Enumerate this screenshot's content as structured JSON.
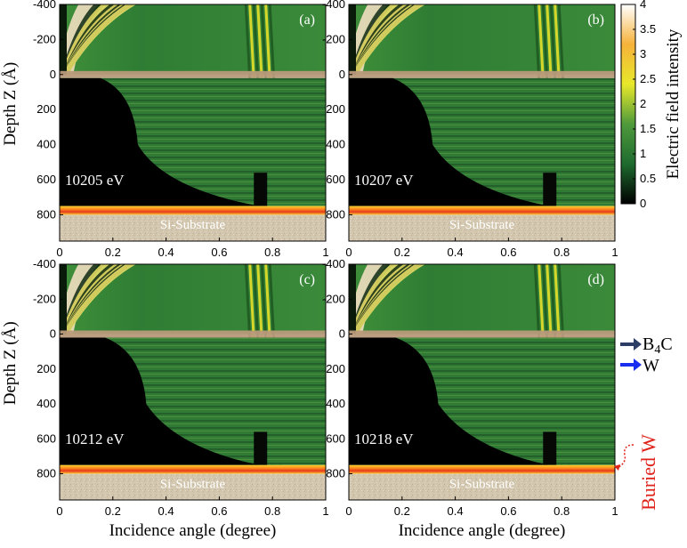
{
  "chart_data": {
    "type": "heatmap",
    "xlabel": "Incidence angle (degree)",
    "ylabel": "Depth Z (Å)",
    "xlim": [
      0,
      1
    ],
    "ylim": [
      -400,
      950
    ],
    "x_ticks": [
      0,
      0.2,
      0.4,
      0.6,
      0.8,
      1
    ],
    "x_tick_labels": [
      "0",
      "0.2",
      "0.4",
      "0.6",
      "0.8",
      "1"
    ],
    "y_ticks": [
      -400,
      -200,
      0,
      200,
      400,
      600,
      800
    ],
    "y_tick_labels": [
      "-400",
      "-200",
      "0",
      "200",
      "400",
      "600",
      "800"
    ],
    "interfaces": {
      "top_b4c_depth": 0,
      "buried_w_depth": 750
    },
    "substrate_label": "Si-Substrate",
    "colorbar": {
      "label": "Electric field intensity",
      "range": [
        0,
        4
      ],
      "ticks": [
        0,
        0.5,
        1,
        1.5,
        2,
        2.5,
        3,
        3.5,
        4
      ],
      "tick_labels": [
        "0",
        "0.5",
        "1",
        "1.5",
        "2",
        "2.5",
        "3",
        "3.5",
        "4"
      ],
      "colors": [
        "#000000",
        "#1f6b2f",
        "#4f9a3b",
        "#e8e82a",
        "#f6b23a",
        "#ffffff"
      ]
    },
    "panels": [
      {
        "label": "(a)",
        "energy": "10205 eV"
      },
      {
        "label": "(b)",
        "energy": "10207 eV"
      },
      {
        "label": "(c)",
        "energy": "10212 eV"
      },
      {
        "label": "(d)",
        "energy": "10218 eV"
      }
    ]
  },
  "annotations": {
    "b4c": {
      "main": "B",
      "sub": "4",
      "tail": "C",
      "arrow_color": "#2c3e66"
    },
    "w": {
      "label": "W",
      "arrow_color": "#1a2ef0"
    },
    "buried_w": {
      "label": "Buried W",
      "color": "#e0231a"
    }
  }
}
